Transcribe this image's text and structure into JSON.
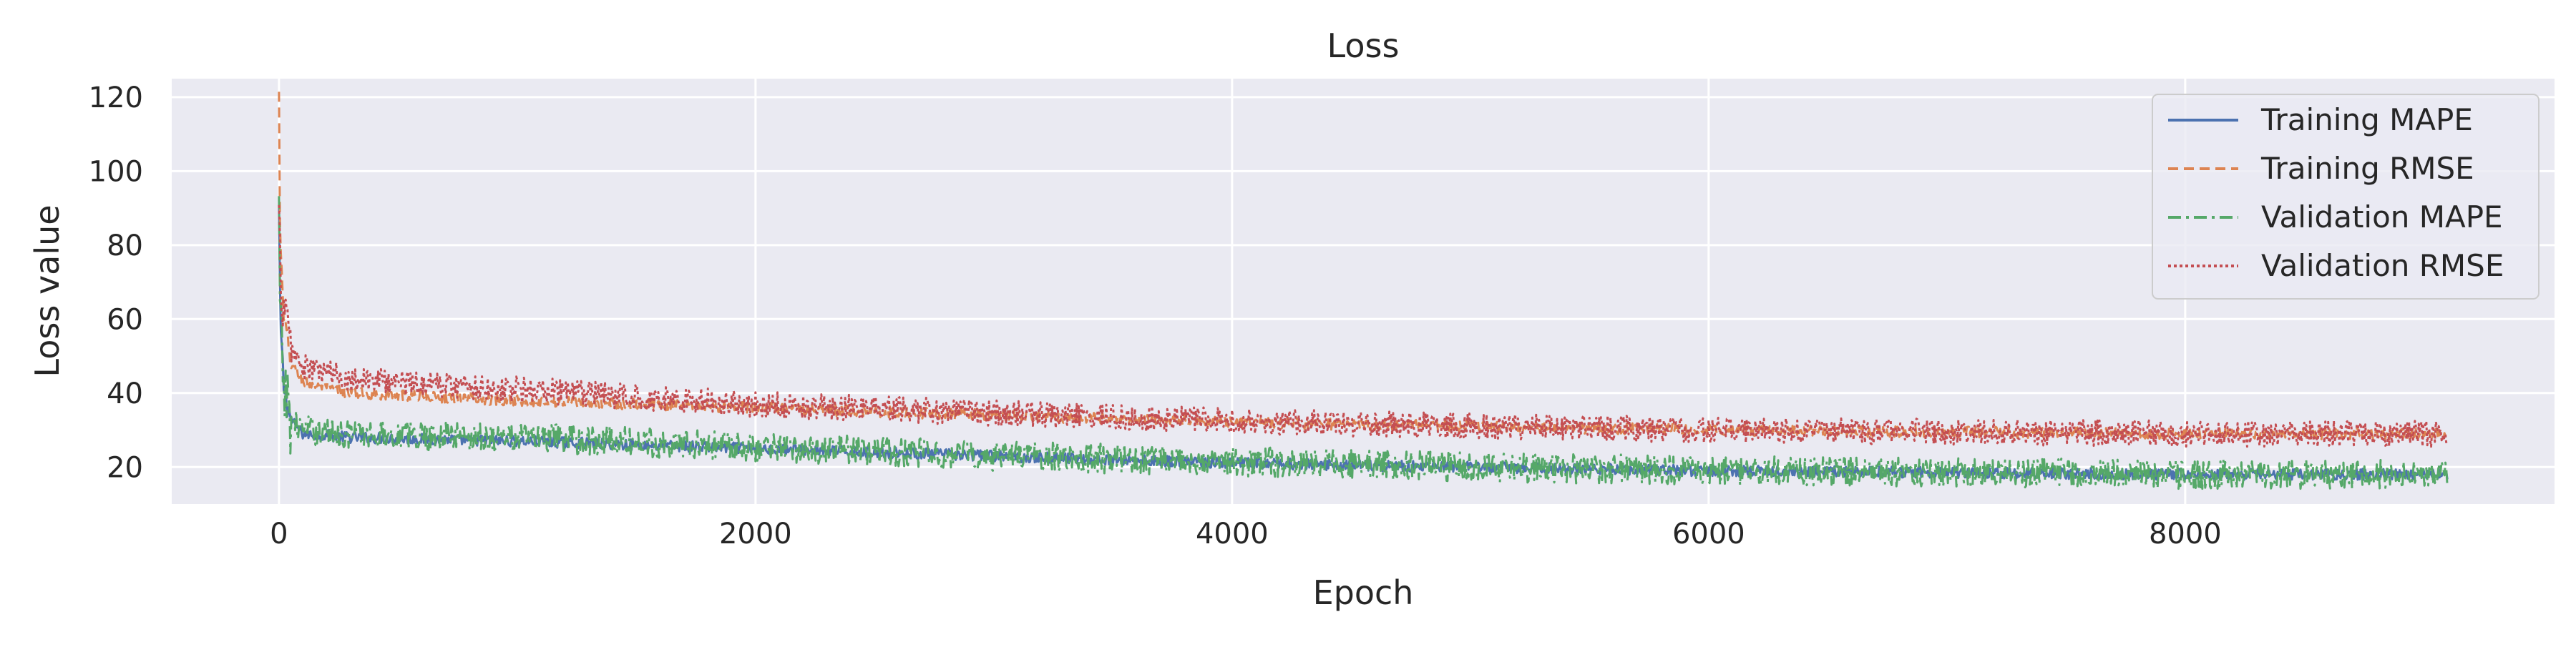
{
  "chart_data": {
    "type": "line",
    "title": "Loss",
    "xlabel": "Epoch",
    "ylabel": "Loss value",
    "xlim": [
      -450,
      9550
    ],
    "ylim": [
      10,
      125
    ],
    "xticks": [
      0,
      2000,
      4000,
      6000,
      8000
    ],
    "yticks": [
      20,
      40,
      60,
      80,
      100,
      120
    ],
    "grid": true,
    "legend_position": "top-right",
    "n_epochs": 9100,
    "series": [
      {
        "name": "Training MAPE",
        "color": "#4c72b0",
        "dash": "solid",
        "keypoints": {
          "x": [
            0,
            5,
            20,
            50,
            100,
            300,
            1000,
            2000,
            3000,
            4000,
            5000,
            6000,
            7000,
            8000,
            9100
          ],
          "y": [
            90,
            60,
            42,
            33,
            29,
            28,
            27,
            25,
            23,
            21,
            20,
            19,
            18.5,
            18,
            18
          ]
        },
        "noise": 1.5
      },
      {
        "name": "Training RMSE",
        "color": "#dd8452",
        "dash": "dashed",
        "keypoints": {
          "x": [
            0,
            5,
            20,
            50,
            100,
            300,
            1000,
            2000,
            3000,
            4000,
            5000,
            6000,
            7000,
            8000,
            9100
          ],
          "y": [
            120,
            80,
            60,
            48,
            43,
            40,
            38,
            36,
            34,
            32,
            31,
            30,
            29.5,
            29,
            29
          ]
        },
        "noise": 1.5
      },
      {
        "name": "Validation MAPE",
        "color": "#55a868",
        "dash": "dashdot",
        "keypoints": {
          "x": [
            0,
            5,
            20,
            50,
            100,
            300,
            1000,
            2000,
            3000,
            4000,
            5000,
            6000,
            7000,
            8000,
            9100
          ],
          "y": [
            88,
            58,
            42,
            33,
            30,
            29,
            28,
            25.5,
            23,
            21.5,
            20,
            19,
            18.5,
            18,
            18
          ]
        },
        "noise": 4
      },
      {
        "name": "Validation RMSE",
        "color": "#c44e52",
        "dash": "dotted",
        "keypoints": {
          "x": [
            0,
            5,
            20,
            50,
            100,
            300,
            1000,
            2000,
            3000,
            4000,
            5000,
            6000,
            7000,
            8000,
            9100
          ],
          "y": [
            85,
            75,
            62,
            52,
            47,
            44,
            41,
            37,
            34.5,
            32.5,
            31,
            30,
            29.5,
            29,
            29
          ]
        },
        "noise": 3.5
      }
    ]
  }
}
